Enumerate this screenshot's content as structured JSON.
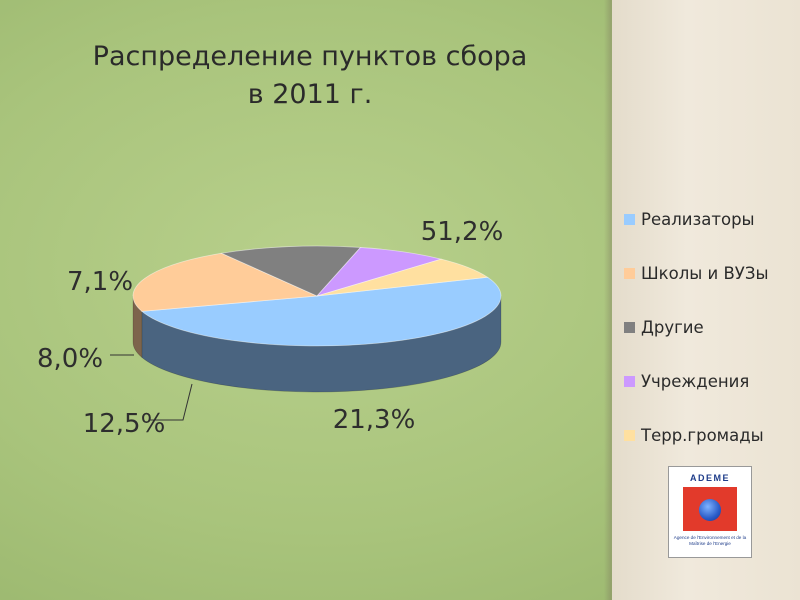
{
  "chart_data": {
    "type": "pie",
    "title": "Распределение пунктов сбора в 2011 г.",
    "title_lines": [
      "Распределение пунктов сбора",
      "в 2011 г."
    ],
    "three_d": true,
    "categories": [
      "Реализаторы",
      "Школы и ВУЗы",
      "Другие",
      "Учреждения",
      "Терр.громады"
    ],
    "values": [
      51.2,
      21.3,
      12.5,
      8.0,
      7.1
    ],
    "value_labels": [
      "51,2%",
      "21,3%",
      "12,5%",
      "8,0%",
      "7,1%"
    ],
    "colors": [
      "#99ccff",
      "#ffcc99",
      "#808080",
      "#cc99ff",
      "#ffe0a0"
    ],
    "legend_position": "right"
  },
  "legend": {
    "items": [
      {
        "label": "Реализаторы",
        "color": "#99ccff"
      },
      {
        "label": "Школы и ВУЗы",
        "color": "#ffcc99"
      },
      {
        "label": "Другие",
        "color": "#808080"
      },
      {
        "label": "Учреждения",
        "color": "#cc99ff"
      },
      {
        "label": "Терр.громады",
        "color": "#ffe0a0"
      }
    ]
  },
  "logo": {
    "word": "ADEME",
    "caption": "Agence de l'Environnement et de la Maîtrise de l'Energie"
  }
}
